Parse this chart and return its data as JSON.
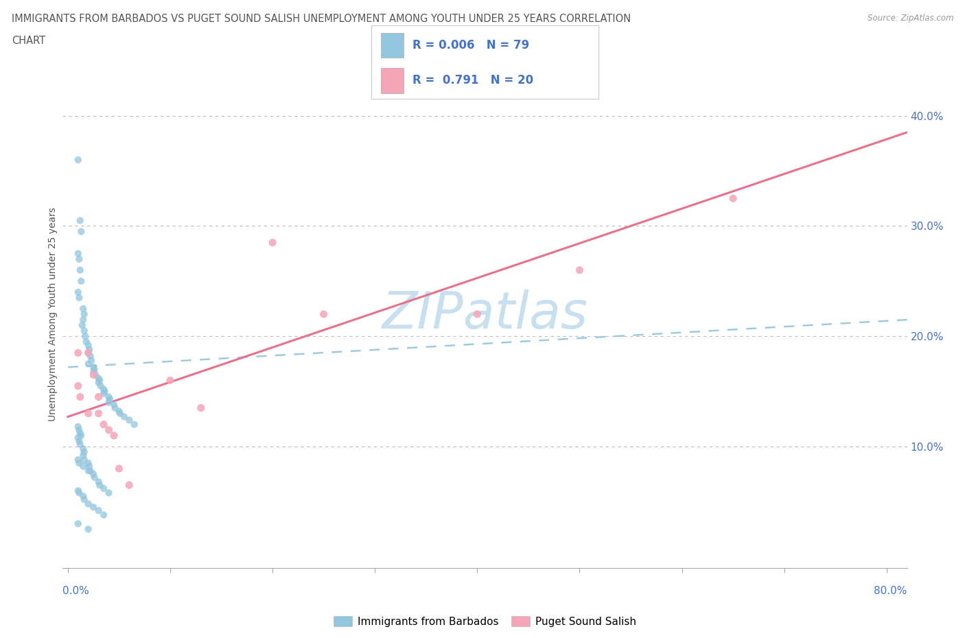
{
  "title_line1": "IMMIGRANTS FROM BARBADOS VS PUGET SOUND SALISH UNEMPLOYMENT AMONG YOUTH UNDER 25 YEARS CORRELATION",
  "title_line2": "CHART",
  "source": "Source: ZipAtlas.com",
  "ylabel": "Unemployment Among Youth under 25 years",
  "y_ticks": [
    "10.0%",
    "20.0%",
    "30.0%",
    "40.0%"
  ],
  "y_tick_vals": [
    0.1,
    0.2,
    0.3,
    0.4
  ],
  "xlim": [
    -0.005,
    0.82
  ],
  "ylim": [
    -0.01,
    0.45
  ],
  "blue_color": "#92c5de",
  "pink_color": "#f4a6b8",
  "blue_line_color": "#92c5de",
  "pink_line_color": "#e8708a",
  "legend_label1": "Immigrants from Barbados",
  "legend_label2": "Puget Sound Salish",
  "watermark": "ZIPatlas",
  "blue_trend_x0": 0.0,
  "blue_trend_x1": 0.82,
  "blue_trend_y0": 0.172,
  "blue_trend_y1": 0.215,
  "pink_trend_x0": 0.0,
  "pink_trend_x1": 0.82,
  "pink_trend_y0": 0.127,
  "pink_trend_y1": 0.385,
  "grid_color": "#bbbbbb",
  "background_color": "#ffffff",
  "title_color": "#555555",
  "axis_label_color": "#4472c4",
  "watermark_color": "#c8dff0",
  "x_tick_positions": [
    0.0,
    0.1,
    0.2,
    0.3,
    0.4,
    0.5,
    0.6,
    0.7,
    0.8
  ]
}
